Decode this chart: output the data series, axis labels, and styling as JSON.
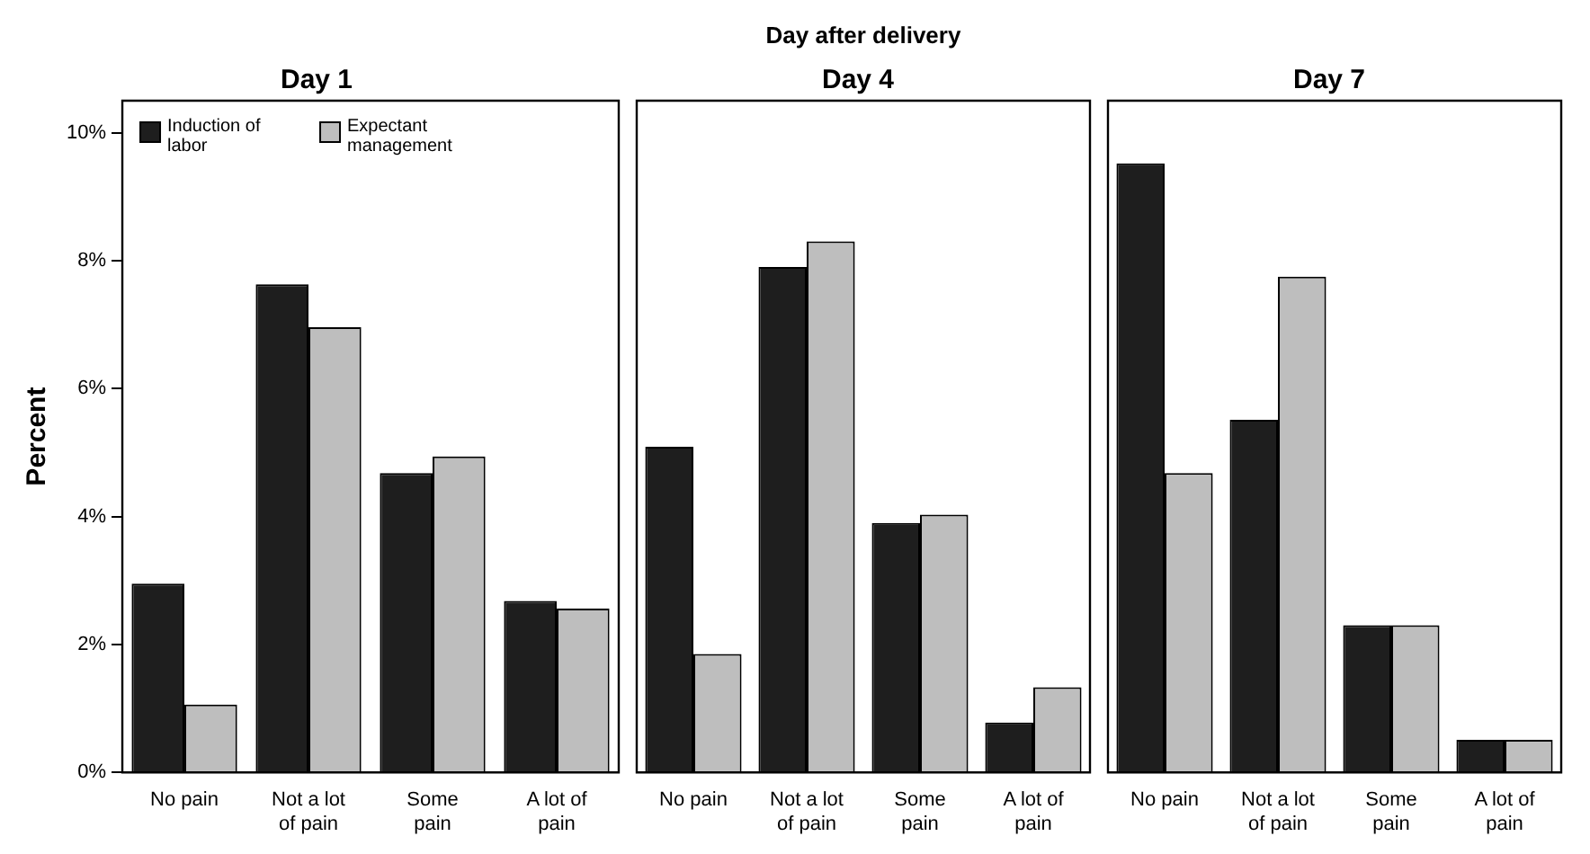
{
  "chart_data": [
    {
      "type": "bar",
      "title": "Day 1",
      "ylabel": "Percent",
      "categories": [
        "No pain",
        "Not a lot of pain",
        "Some pain",
        "A lot of pain"
      ],
      "series": [
        {
          "name": "Induction of labor",
          "color": "#1e1e1e",
          "values": [
            2.95,
            7.63,
            4.68,
            2.68
          ]
        },
        {
          "name": "Expectant management",
          "color": "#bebebe",
          "values": [
            1.06,
            6.96,
            4.94,
            2.56
          ]
        }
      ],
      "ylim": [
        0,
        10.5
      ],
      "yticks": [
        {
          "value": 0,
          "label": "0%"
        },
        {
          "value": 2,
          "label": "2%"
        },
        {
          "value": 4,
          "label": "4%"
        },
        {
          "value": 6,
          "label": "6%"
        },
        {
          "value": 8,
          "label": "8%"
        },
        {
          "value": 10,
          "label": "10%"
        }
      ],
      "legend": "top left",
      "grid": false
    },
    {
      "type": "bar",
      "title": "Day 4",
      "annotations": [
        "Day after delivery"
      ],
      "categories": [
        "No pain",
        "Not a lot of pain",
        "Some pain",
        "A lot of pain"
      ],
      "series": [
        {
          "color": "#1e1e1e",
          "values": [
            5.09,
            7.9,
            3.9,
            0.78
          ]
        },
        {
          "color": "#bebebe",
          "values": [
            1.85,
            8.3,
            4.03,
            1.33
          ]
        }
      ],
      "ylim": [
        0,
        10.5
      ],
      "tick_labels": "x",
      "grid": false
    },
    {
      "type": "bar",
      "title": "Day 7",
      "categories": [
        "No pain",
        "Not a lot of pain",
        "Some pain",
        "A lot of pain"
      ],
      "series": [
        {
          "color": "#1e1e1e",
          "values": [
            9.52,
            5.51,
            2.3,
            0.51
          ]
        },
        {
          "color": "#bebebe",
          "values": [
            4.68,
            7.75,
            2.3,
            0.51
          ]
        }
      ],
      "ylim": [
        0,
        10.5
      ],
      "tick_labels": "x",
      "grid": false
    }
  ]
}
